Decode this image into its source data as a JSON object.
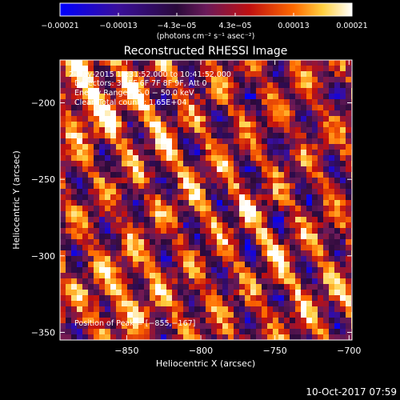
{
  "chart_data": {
    "type": "heatmap",
    "title": "Reconstructed RHESSI Image",
    "xlabel": "Heliocentric X (arcsec)",
    "ylabel": "Heliocentric Y (arcsec)",
    "xlim": [
      -895,
      -698
    ],
    "ylim": [
      -355,
      -172
    ],
    "x_ticks": [
      -850,
      -800,
      -750,
      -700
    ],
    "x_tick_labels": [
      "−850",
      "−800",
      "−750",
      "−700"
    ],
    "y_ticks": [
      -200,
      -250,
      -300,
      -350
    ],
    "y_tick_labels": [
      "−200",
      "−250",
      "−300",
      "−350"
    ],
    "colorbar": {
      "min": -0.00021,
      "max": 0.00021,
      "tick_labels": [
        "−0.00021",
        "−0.00013",
        "−4.3e−05",
        "4.3e−05",
        "0.00013",
        "0.00021"
      ],
      "unit_label": "(photons cm⁻² s⁻¹ asec⁻²)",
      "colors": [
        "#0000ff",
        "#3a0f9a",
        "#2a0a3a",
        "#6a1a5a",
        "#c01010",
        "#ff6a00",
        "#ffd040",
        "#ffffff"
      ]
    },
    "annotations": {
      "time_range": "2‑May‑2015 10:31:52.000 to 10:41:52.000",
      "detectors": "Detectors: 3F 5F 6F 7F 8F 9F, Att 0",
      "energy": "Energy Range: 25.0 − 50.0 keV",
      "clean": "Clean    Total counts: 1.65E+04",
      "peak": "Position of Peak = [−855,−167]"
    },
    "peak_position": [
      -855,
      -167
    ]
  },
  "footer": {
    "timestamp": "10‑Oct‑2017 07:59"
  }
}
